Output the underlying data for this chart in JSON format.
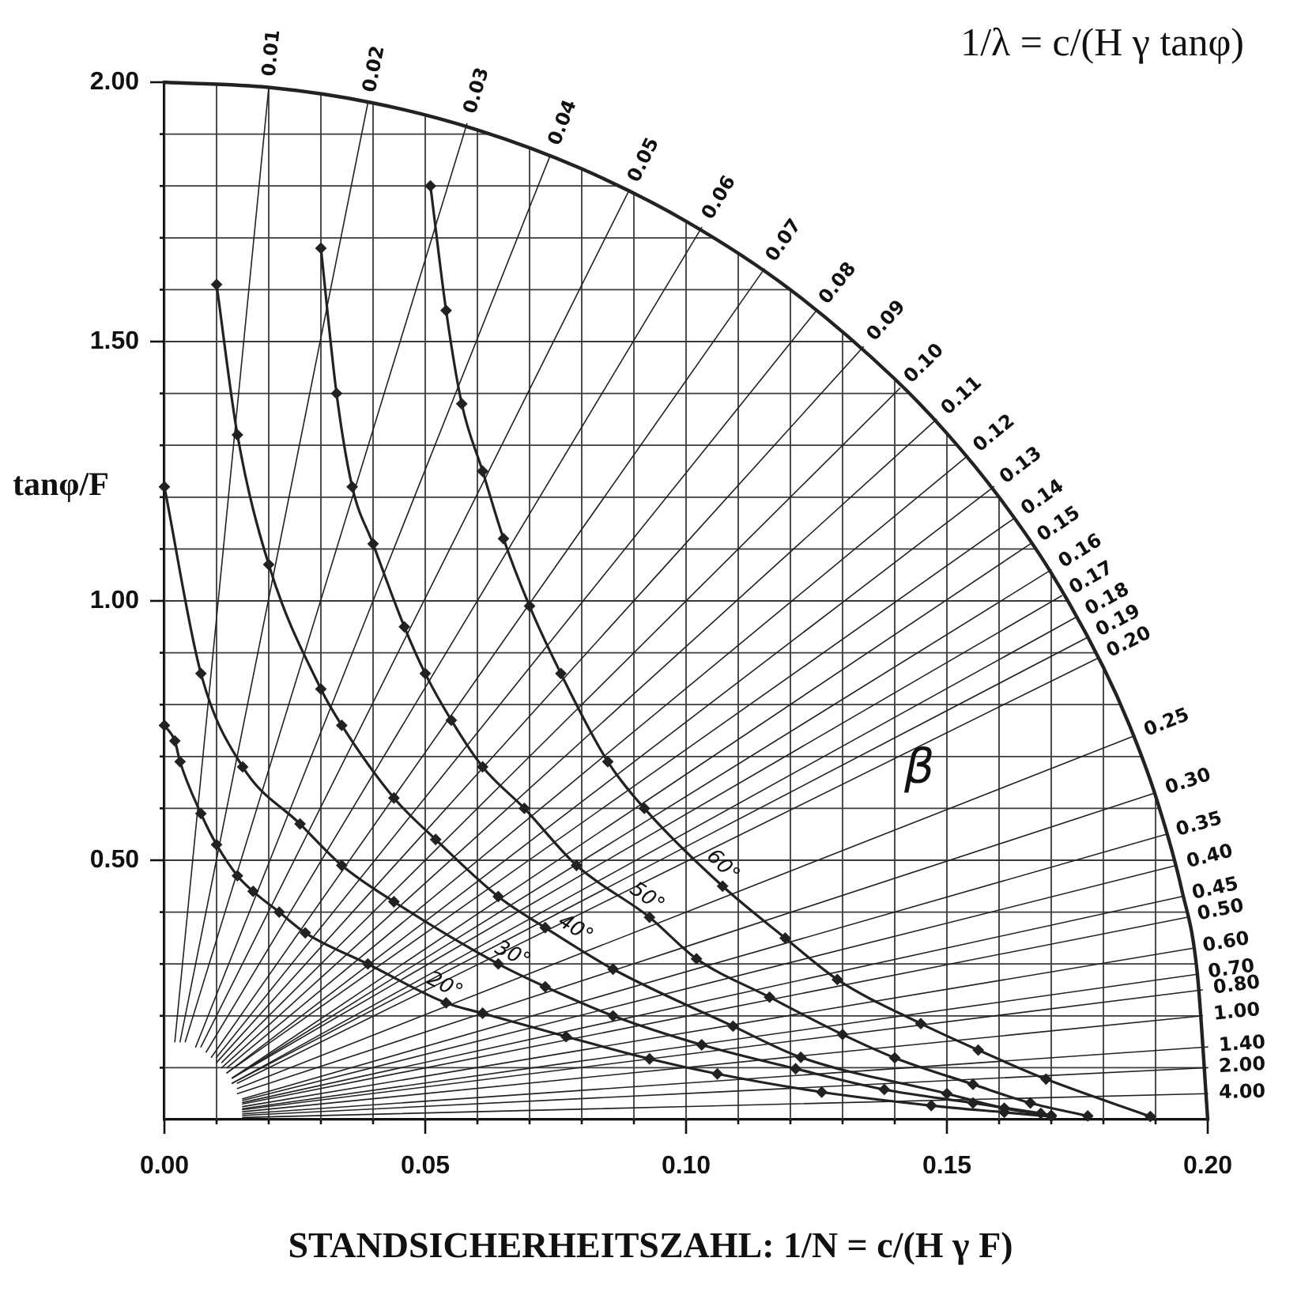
{
  "chart_data": {
    "type": "line",
    "xlabel": "STANDSICHERHEITSZAHL:  1/N = c/(H γ F)",
    "ylabel": "tanφ/F",
    "annotations": [
      "1/λ = c/(H γ tanφ)",
      "β"
    ],
    "xlim": [
      0,
      0.2
    ],
    "ylim": [
      0,
      2
    ],
    "xticks": [
      {
        "value": 0,
        "label": "0.00"
      },
      {
        "value": 0.01,
        "label": null
      },
      {
        "value": 0.02,
        "label": null
      },
      {
        "value": 0.03,
        "label": null
      },
      {
        "value": 0.04,
        "label": null
      },
      {
        "value": 0.05,
        "label": "0.05"
      },
      {
        "value": 0.06,
        "label": null
      },
      {
        "value": 0.07,
        "label": null
      },
      {
        "value": 0.08,
        "label": null
      },
      {
        "value": 0.09,
        "label": null
      },
      {
        "value": 0.1,
        "label": "0.10"
      },
      {
        "value": 0.11,
        "label": null
      },
      {
        "value": 0.12,
        "label": null
      },
      {
        "value": 0.13,
        "label": null
      },
      {
        "value": 0.14,
        "label": null
      },
      {
        "value": 0.15,
        "label": "0.15"
      },
      {
        "value": 0.16,
        "label": null
      },
      {
        "value": 0.17,
        "label": null
      },
      {
        "value": 0.18,
        "label": null
      },
      {
        "value": 0.19,
        "label": null
      },
      {
        "value": 0.2,
        "label": "0.20"
      }
    ],
    "yticks": [
      {
        "value": 0.1,
        "label": null
      },
      {
        "value": 0.2,
        "label": null
      },
      {
        "value": 0.3,
        "label": null
      },
      {
        "value": 0.4,
        "label": null
      },
      {
        "value": 0.5,
        "label": "0.50"
      },
      {
        "value": 0.6,
        "label": null
      },
      {
        "value": 0.7,
        "label": null
      },
      {
        "value": 0.8,
        "label": null
      },
      {
        "value": 0.9,
        "label": null
      },
      {
        "value": 1,
        "label": "1.00"
      },
      {
        "value": 1.1,
        "label": null
      },
      {
        "value": 1.2,
        "label": null
      },
      {
        "value": 1.3,
        "label": null
      },
      {
        "value": 1.4,
        "label": null
      },
      {
        "value": 1.5,
        "label": "1.50"
      },
      {
        "value": 1.6,
        "label": null
      },
      {
        "value": 1.7,
        "label": null
      },
      {
        "value": 1.8,
        "label": null
      },
      {
        "value": 1.9,
        "label": null
      },
      {
        "value": 2,
        "label": "2.00"
      }
    ],
    "grid": true,
    "marker": "diamond",
    "series": [
      {
        "name": "20°",
        "color": "#222222",
        "x": [
          0,
          0.002,
          0.003,
          0.007,
          0.01,
          0.014,
          0.017,
          0.022,
          0.027,
          0.039,
          0.054,
          0.061,
          0.077,
          0.093,
          0.106,
          0.126,
          0.147,
          0.161,
          0.17
        ],
        "values": [
          0.76,
          0.73,
          0.69,
          0.59,
          0.53,
          0.47,
          0.44,
          0.4,
          0.36,
          0.3,
          0.225,
          0.205,
          0.16,
          0.117,
          0.088,
          0.053,
          0.027,
          0.014,
          0.006
        ]
      },
      {
        "name": "30°",
        "color": "#222222",
        "x": [
          0,
          0.007,
          0.015,
          0.026,
          0.034,
          0.044,
          0.064,
          0.073,
          0.086,
          0.103,
          0.121,
          0.138,
          0.155,
          0.168
        ],
        "values": [
          1.22,
          0.86,
          0.68,
          0.57,
          0.49,
          0.42,
          0.3,
          0.256,
          0.2,
          0.144,
          0.098,
          0.058,
          0.032,
          0.012
        ]
      },
      {
        "name": "40°",
        "color": "#222222",
        "x": [
          0.01,
          0.014,
          0.02,
          0.03,
          0.034,
          0.044,
          0.052,
          0.064,
          0.073,
          0.086,
          0.109,
          0.122,
          0.15,
          0.161,
          0.17
        ],
        "values": [
          1.61,
          1.32,
          1.07,
          0.83,
          0.76,
          0.62,
          0.54,
          0.43,
          0.37,
          0.29,
          0.18,
          0.12,
          0.05,
          0.022,
          0.008
        ]
      },
      {
        "name": "50°",
        "color": "#222222",
        "x": [
          0.03,
          0.033,
          0.036,
          0.04,
          0.046,
          0.05,
          0.055,
          0.061,
          0.069,
          0.079,
          0.093,
          0.102,
          0.116,
          0.13,
          0.14,
          0.155,
          0.166,
          0.177
        ],
        "values": [
          1.68,
          1.4,
          1.22,
          1.11,
          0.95,
          0.86,
          0.77,
          0.68,
          0.6,
          0.49,
          0.39,
          0.31,
          0.236,
          0.164,
          0.119,
          0.068,
          0.032,
          0.007
        ]
      },
      {
        "name": "60°",
        "color": "#222222",
        "x": [
          0.051,
          0.054,
          0.057,
          0.061,
          0.065,
          0.07,
          0.076,
          0.085,
          0.092,
          0.107,
          0.119,
          0.129,
          0.145,
          0.156,
          0.169,
          0.189
        ],
        "values": [
          1.8,
          1.56,
          1.38,
          1.25,
          1.12,
          0.99,
          0.86,
          0.69,
          0.6,
          0.45,
          0.35,
          0.27,
          0.185,
          0.134,
          0.078,
          0.006
        ]
      },
      {
        "name": "0.01",
        "color": "#222222",
        "marker": "none",
        "x": [
          0.002,
          0.02
        ],
        "values": [
          0.15,
          1.99
        ]
      },
      {
        "name": "0.02",
        "color": "#222222",
        "marker": "none",
        "x": [
          0.003,
          0.039
        ],
        "values": [
          0.15,
          1.96
        ]
      },
      {
        "name": "0.03",
        "color": "#222222",
        "marker": "none",
        "x": [
          0.004,
          0.058
        ],
        "values": [
          0.15,
          1.92
        ]
      },
      {
        "name": "0.04",
        "color": "#222222",
        "marker": "none",
        "x": [
          0.006,
          0.074
        ],
        "values": [
          0.14,
          1.86
        ]
      },
      {
        "name": "0.05",
        "color": "#222222",
        "marker": "none",
        "x": [
          0.007,
          0.089
        ],
        "values": [
          0.14,
          1.79
        ]
      },
      {
        "name": "0.06",
        "color": "#222222",
        "marker": "none",
        "x": [
          0.008,
          0.103
        ],
        "values": [
          0.13,
          1.72
        ]
      },
      {
        "name": "0.07",
        "color": "#222222",
        "marker": "none",
        "x": [
          0.009,
          0.115
        ],
        "values": [
          0.12,
          1.64
        ]
      },
      {
        "name": "0.08",
        "color": "#222222",
        "marker": "none",
        "x": [
          0.01,
          0.125
        ],
        "values": [
          0.12,
          1.56
        ]
      },
      {
        "name": "0.09",
        "color": "#222222",
        "marker": "none",
        "x": [
          0.01,
          0.134
        ],
        "values": [
          0.11,
          1.49
        ]
      },
      {
        "name": "0.10",
        "color": "#222222",
        "marker": "none",
        "x": [
          0.011,
          0.141
        ],
        "values": [
          0.11,
          1.41
        ]
      },
      {
        "name": "0.11",
        "color": "#222222",
        "marker": "none",
        "x": [
          0.011,
          0.148
        ],
        "values": [
          0.1,
          1.35
        ]
      },
      {
        "name": "0.12",
        "color": "#222222",
        "marker": "none",
        "x": [
          0.012,
          0.154
        ],
        "values": [
          0.1,
          1.28
        ]
      },
      {
        "name": "0.13",
        "color": "#222222",
        "marker": "none",
        "x": [
          0.012,
          0.159
        ],
        "values": [
          0.09,
          1.22
        ]
      },
      {
        "name": "0.14",
        "color": "#222222",
        "marker": "none",
        "x": [
          0.012,
          0.163
        ],
        "values": [
          0.09,
          1.16
        ]
      },
      {
        "name": "0.15",
        "color": "#222222",
        "marker": "none",
        "x": [
          0.013,
          0.166
        ],
        "values": [
          0.08,
          1.11
        ]
      },
      {
        "name": "0.16",
        "color": "#222222",
        "marker": "none",
        "x": [
          0.013,
          0.17
        ],
        "values": [
          0.08,
          1.06
        ]
      },
      {
        "name": "0.17",
        "color": "#222222",
        "marker": "none",
        "x": [
          0.013,
          0.172
        ],
        "values": [
          0.08,
          1.01
        ]
      },
      {
        "name": "0.18",
        "color": "#222222",
        "marker": "none",
        "x": [
          0.013,
          0.175
        ],
        "values": [
          0.07,
          0.97
        ]
      },
      {
        "name": "0.19",
        "color": "#222222",
        "marker": "none",
        "x": [
          0.013,
          0.177
        ],
        "values": [
          0.07,
          0.93
        ]
      },
      {
        "name": "0.20",
        "color": "#222222",
        "marker": "none",
        "x": [
          0.014,
          0.179
        ],
        "values": [
          0.07,
          0.89
        ]
      },
      {
        "name": "0.25",
        "color": "#222222",
        "marker": "none",
        "x": [
          0.014,
          0.186
        ],
        "values": [
          0.06,
          0.74
        ]
      },
      {
        "name": "0.30",
        "color": "#222222",
        "marker": "none",
        "x": [
          0.014,
          0.19
        ],
        "values": [
          0.05,
          0.63
        ]
      },
      {
        "name": "0.35",
        "color": "#222222",
        "marker": "none",
        "x": [
          0.015,
          0.192
        ],
        "values": [
          0.04,
          0.55
        ]
      },
      {
        "name": "0.40",
        "color": "#222222",
        "marker": "none",
        "x": [
          0.015,
          0.194
        ],
        "values": [
          0.037,
          0.49
        ]
      },
      {
        "name": "0.45",
        "color": "#222222",
        "marker": "none",
        "x": [
          0.015,
          0.195
        ],
        "values": [
          0.033,
          0.43
        ]
      },
      {
        "name": "0.50",
        "color": "#222222",
        "marker": "none",
        "x": [
          0.015,
          0.196
        ],
        "values": [
          0.03,
          0.39
        ]
      },
      {
        "name": "0.60",
        "color": "#222222",
        "marker": "none",
        "x": [
          0.015,
          0.197
        ],
        "values": [
          0.025,
          0.33
        ]
      },
      {
        "name": "0.70",
        "color": "#222222",
        "marker": "none",
        "x": [
          0.015,
          0.198
        ],
        "values": [
          0.021,
          0.28
        ]
      },
      {
        "name": "0.80",
        "color": "#222222",
        "marker": "none",
        "x": [
          0.015,
          0.199
        ],
        "values": [
          0.019,
          0.25
        ]
      },
      {
        "name": "1.00",
        "color": "#222222",
        "marker": "none",
        "x": [
          0.015,
          0.199
        ],
        "values": [
          0.015,
          0.2
        ]
      },
      {
        "name": "1.40",
        "color": "#222222",
        "marker": "none",
        "x": [
          0.015,
          0.2
        ],
        "values": [
          0.011,
          0.14
        ]
      },
      {
        "name": "2.00",
        "color": "#222222",
        "marker": "none",
        "x": [
          0.015,
          0.2
        ],
        "values": [
          0.008,
          0.1
        ]
      },
      {
        "name": "4.00",
        "color": "#222222",
        "marker": "none",
        "x": [
          0.015,
          0.2
        ],
        "values": [
          0.004,
          0.05
        ]
      },
      {
        "color": "#222222",
        "marker": "none",
        "x": [
          0,
          0.02,
          0.04,
          0.06,
          0.08,
          0.1,
          0.12,
          0.14,
          0.15,
          0.16,
          0.17,
          0.18,
          0.185,
          0.19,
          0.195,
          0.198,
          0.2
        ],
        "values": [
          2,
          1.99,
          1.96,
          1.908,
          1.833,
          1.732,
          1.6,
          1.428,
          1.323,
          1.2,
          1.054,
          0.872,
          0.76,
          0.624,
          0.444,
          0.282,
          0
        ]
      }
    ]
  }
}
